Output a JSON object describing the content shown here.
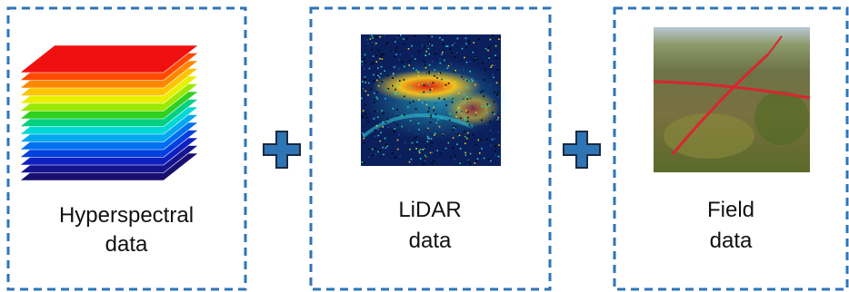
{
  "nodes": [
    {
      "label": [
        "Hyperspectral",
        "data"
      ]
    },
    {
      "label": [
        "LiDAR",
        "data"
      ]
    },
    {
      "label": [
        "Field",
        "data"
      ]
    }
  ]
}
